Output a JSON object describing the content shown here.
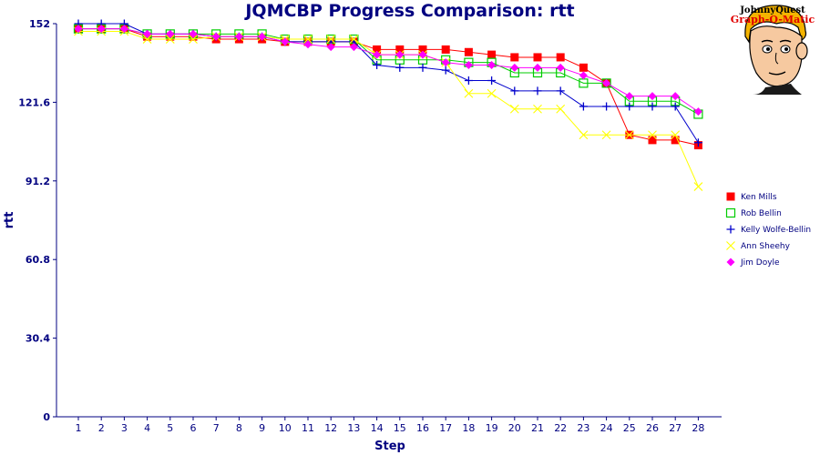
{
  "title": "JQMCBP Progress Comparison: rtt",
  "logo": {
    "line1": "JohnnyQuest",
    "line2": "Graph-O-Matic",
    "icon": "boy-cartoon-face-icon"
  },
  "chart_data": {
    "type": "line",
    "title": "JQMCBP Progress Comparison: rtt",
    "xlabel": "Step",
    "ylabel": "rtt",
    "ylim": [
      0,
      152
    ],
    "yticks": [
      "0",
      "30.4",
      "60.8",
      "91.2",
      "121.6",
      "152"
    ],
    "ytick_values": [
      0,
      30.4,
      60.8,
      91.2,
      121.6,
      152
    ],
    "x": [
      1,
      2,
      3,
      4,
      5,
      6,
      7,
      8,
      9,
      10,
      11,
      12,
      13,
      14,
      15,
      16,
      17,
      18,
      19,
      20,
      21,
      22,
      23,
      24,
      25,
      26,
      27,
      28
    ],
    "x_tick_labels": [
      "1",
      "2",
      "3",
      "4",
      "5",
      "6",
      "7",
      "8",
      "9",
      "10",
      "11",
      "12",
      "13",
      "14",
      "15",
      "16",
      "17",
      "18",
      "19",
      "20",
      "21",
      "22",
      "23",
      "24",
      "25",
      "26",
      "27",
      "28"
    ],
    "grid": false,
    "legend_position": "right",
    "series": [
      {
        "name": "Ken Mills",
        "color": "#ff0000",
        "marker": "filled-square",
        "values": [
          150,
          150,
          150,
          147,
          147,
          147,
          146,
          146,
          146,
          145,
          145,
          145,
          145,
          142,
          142,
          142,
          142,
          141,
          140,
          139,
          139,
          139,
          135,
          129,
          109,
          107,
          107,
          105
        ]
      },
      {
        "name": "Rob Bellin",
        "color": "#00cc00",
        "marker": "open-square",
        "values": [
          150,
          150,
          150,
          148,
          148,
          148,
          148,
          148,
          148,
          146,
          146,
          146,
          146,
          138,
          138,
          138,
          138,
          137,
          137,
          133,
          133,
          133,
          129,
          129,
          122,
          122,
          122,
          117
        ]
      },
      {
        "name": "Kelly Wolfe-Bellin",
        "color": "#0000cc",
        "marker": "plus",
        "values": [
          152,
          152,
          152,
          148,
          148,
          148,
          147,
          147,
          147,
          145,
          145,
          145,
          145,
          136,
          135,
          135,
          134,
          130,
          130,
          126,
          126,
          126,
          120,
          120,
          120,
          120,
          120,
          106
        ]
      },
      {
        "name": "Ann Sheehy",
        "color": "#ffff00",
        "marker": "x",
        "values": [
          149,
          149,
          149,
          146,
          146,
          146,
          147,
          147,
          147,
          146,
          146,
          146,
          146,
          140,
          140,
          140,
          137,
          125,
          125,
          119,
          119,
          119,
          109,
          109,
          109,
          109,
          109,
          89
        ]
      },
      {
        "name": "Jim Doyle",
        "color": "#ff00ff",
        "marker": "diamond",
        "values": [
          150,
          150,
          150,
          148,
          148,
          148,
          147,
          147,
          147,
          145,
          144,
          143,
          143,
          140,
          140,
          140,
          137,
          136,
          136,
          135,
          135,
          135,
          132,
          129,
          124,
          124,
          124,
          118
        ]
      }
    ]
  }
}
